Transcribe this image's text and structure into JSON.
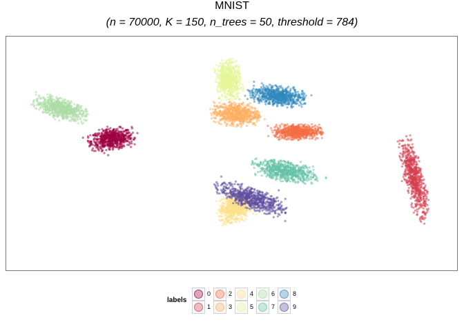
{
  "chart_data": {
    "type": "scatter",
    "title": "MNIST",
    "subtitle": "(n = 70000, K = 150, n_trees = 50, threshold = 784)",
    "xlabel": "",
    "ylabel": "",
    "grid": false,
    "legend": {
      "title": "labels",
      "placement": "bottom",
      "entries": [
        "0",
        "1",
        "2",
        "3",
        "4",
        "5",
        "6",
        "7",
        "8",
        "9"
      ]
    },
    "colors": {
      "0": "#9E0142",
      "1": "#D53E4F",
      "2": "#F46D43",
      "3": "#FDAE61",
      "4": "#FEE08B",
      "5": "#E6F598",
      "6": "#ABDDA4",
      "7": "#66C2A5",
      "8": "#3288BD",
      "9": "#5E4FA2"
    },
    "clusters": [
      {
        "label": "0",
        "center": [
          -4.9,
          0.35
        ],
        "spread": [
          0.8,
          0.3
        ],
        "angle": 5
      },
      {
        "label": "1",
        "center": [
          5.7,
          -0.75
        ],
        "spread": [
          0.32,
          1.15
        ],
        "angle": 18
      },
      {
        "label": "2",
        "center": [
          1.6,
          0.55
        ],
        "spread": [
          0.85,
          0.22
        ],
        "angle": 0
      },
      {
        "label": "3",
        "center": [
          -0.55,
          1.05
        ],
        "spread": [
          0.85,
          0.32
        ],
        "angle": -2
      },
      {
        "label": "4",
        "center": [
          -0.55,
          -1.55
        ],
        "spread": [
          0.65,
          0.4
        ],
        "angle": 20
      },
      {
        "label": "5",
        "center": [
          -0.8,
          2.0
        ],
        "spread": [
          0.45,
          0.55
        ],
        "angle": 10
      },
      {
        "label": "6",
        "center": [
          -6.7,
          1.2
        ],
        "spread": [
          0.98,
          0.28
        ],
        "angle": -12
      },
      {
        "label": "7",
        "center": [
          1.2,
          -0.55
        ],
        "spread": [
          1.1,
          0.28
        ],
        "angle": -8
      },
      {
        "label": "8",
        "center": [
          0.9,
          1.55
        ],
        "spread": [
          1.0,
          0.28
        ],
        "angle": -5
      },
      {
        "label": "9",
        "center": [
          0.0,
          -1.3
        ],
        "spread": [
          1.25,
          0.3
        ],
        "angle": -15
      }
    ],
    "xlim": [
      -8.6,
      7.2
    ],
    "ylim": [
      -3.3,
      3.2
    ]
  }
}
